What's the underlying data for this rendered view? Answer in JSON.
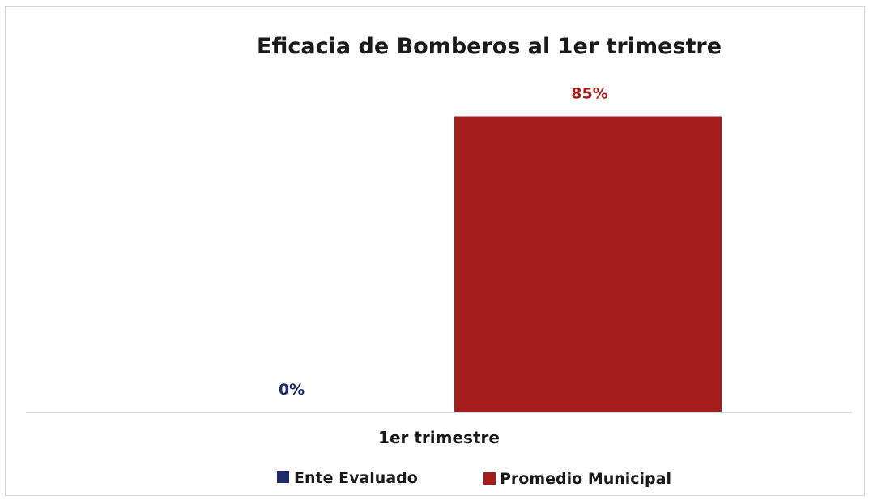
{
  "chart_data": {
    "type": "bar",
    "title": "Eficacia de Bomberos al 1er trimestre",
    "categories": [
      "1er trimestre"
    ],
    "series": [
      {
        "name": "Ente Evaluado",
        "values": [
          0
        ],
        "label": "0%",
        "color": "#1f2a6b"
      },
      {
        "name": "Promedio Municipal",
        "values": [
          85
        ],
        "label": "85%",
        "color": "#a51c1c"
      }
    ],
    "ylim": [
      0,
      100
    ],
    "grid": false,
    "legend": "bottom"
  }
}
